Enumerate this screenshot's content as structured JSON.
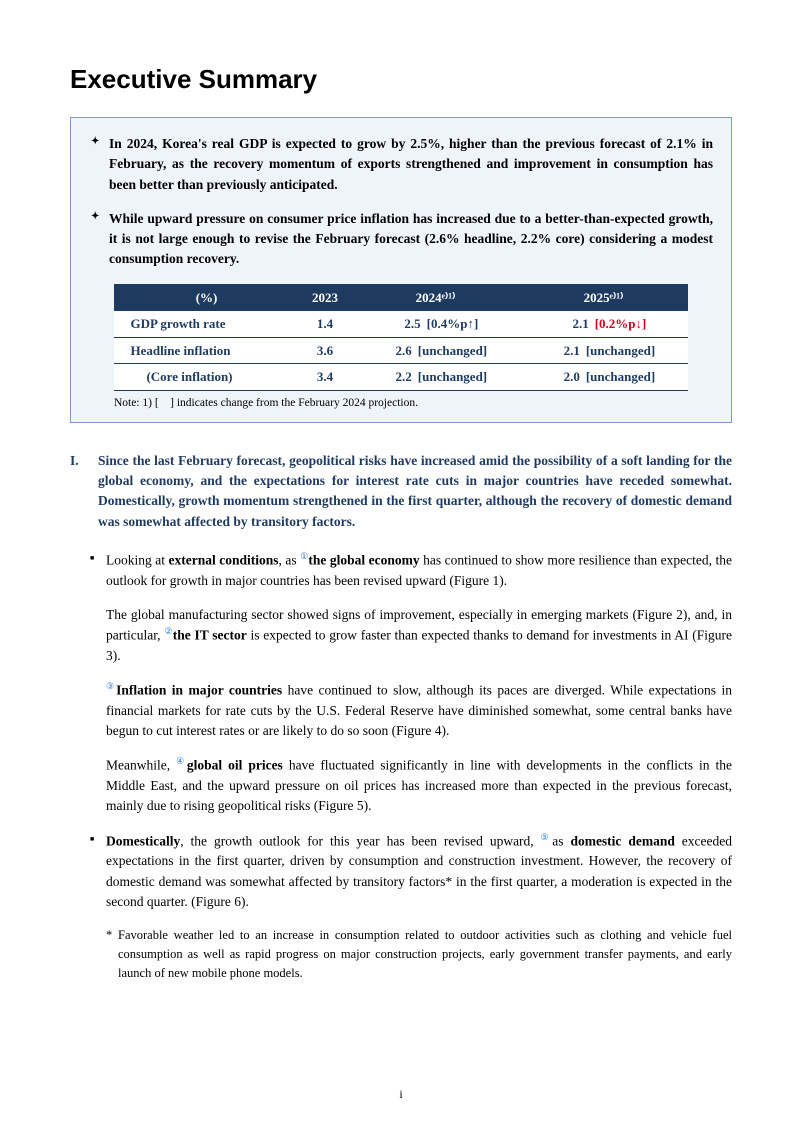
{
  "title": "Executive Summary",
  "summary_box": {
    "border_color": "#7a9cc6",
    "bg_color": "#eff4f9",
    "bullets": [
      "In 2024, Korea's real GDP is expected to grow by 2.5%, higher than the previous forecast of 2.1% in February, as the recovery momentum of exports strengthened and improvement in consumption has been better than previously anticipated.",
      "While upward pressure on consumer price inflation has increased due to a better-than-expected growth, it is not large enough to revise the February forecast (2.6% headline, 2.2% core) considering a modest consumption recovery."
    ],
    "table": {
      "header_bg": "#1f3a5f",
      "header_fg": "#ffffff",
      "cell_fg": "#1f3a5f",
      "columns": [
        "(%)",
        "2023",
        "2024ᵉ⁾¹⁾",
        "2025ᵉ⁾¹⁾"
      ],
      "rows": [
        {
          "label": "GDP growth rate",
          "indent": false,
          "y2023": "1.4",
          "y2024_val": "2.5",
          "y2024_delta": "[0.4%p↑]",
          "y2024_delta_class": "up",
          "y2025_val": "2.1",
          "y2025_delta": "[0.2%p↓]",
          "y2025_delta_class": "down"
        },
        {
          "label": "Headline inflation",
          "indent": false,
          "y2023": "3.6",
          "y2024_val": "2.6",
          "y2024_delta": "[unchanged]",
          "y2024_delta_class": "up",
          "y2025_val": "2.1",
          "y2025_delta": "[unchanged]",
          "y2025_delta_class": "up"
        },
        {
          "label": "(Core inflation)",
          "indent": true,
          "y2023": "3.4",
          "y2024_val": "2.2",
          "y2024_delta": "[unchanged]",
          "y2024_delta_class": "up",
          "y2025_val": "2.0",
          "y2025_delta": "[unchanged]",
          "y2025_delta_class": "up"
        }
      ],
      "note": "Note: 1) [ ] indicates change from the February 2024 projection."
    }
  },
  "section": {
    "roman": "I.",
    "heading_color": "#1f3a5f",
    "heading": "Since the last February forecast, geopolitical risks have increased amid the possibility of a soft landing for the global economy, and the expectations for interest rate cuts in major countries have receded somewhat. Domestically, growth momentum strengthened in the first quarter, although the recovery of domestic demand was somewhat affected by transitory factors."
  },
  "body": {
    "item1": {
      "p1_a": "Looking at ",
      "p1_b": "external conditions",
      "p1_c": ", as ",
      "p1_ref1": "①",
      "p1_d": "the global economy",
      "p1_e": " has continued to show more resilience than expected, the outlook for growth in major countries has been revised upward (Figure 1).",
      "p2_a": "The global manufacturing sector showed signs of improvement, especially in emerging markets (Figure 2), and, in particular, ",
      "p2_ref": "②",
      "p2_b": "the IT sector",
      "p2_c": " is expected to grow faster than expected thanks to demand for investments in AI (Figure 3).",
      "p3_ref": "③",
      "p3_a": "Inflation in major countries",
      "p3_b": " have continued to slow, although its paces are diverged. While expectations in financial markets for rate cuts by the U.S. Federal Reserve have diminished somewhat, some central banks have begun to cut interest rates or are likely to do so soon (Figure 4).",
      "p4_a": "Meanwhile, ",
      "p4_ref": "④",
      "p4_b": "global oil prices",
      "p4_c": " have fluctuated significantly in line with developments in the conflicts in the Middle East, and the upward pressure on oil prices has increased more than expected in the previous forecast, mainly due to rising geopolitical risks (Figure 5)."
    },
    "item2": {
      "p1_a": "Domestically",
      "p1_b": ", the growth outlook for this year has been revised upward, ",
      "p1_ref": "⑤",
      "p1_c": "as ",
      "p1_d": "domestic demand",
      "p1_e": " exceeded expectations in the first quarter, driven by consumption and construction investment. However, the recovery of domestic demand was somewhat affected by transitory factors",
      "p1_star": "*",
      "p1_f": " in the first quarter, a moderation is expected in the second quarter. (Figure 6).",
      "footnote": "Favorable weather led to an increase in consumption related to outdoor activities such as clothing and vehicle fuel consumption as well as rapid progress on major construction projects, early government transfer payments, and early launch of new mobile phone models."
    }
  },
  "page_number": "i"
}
